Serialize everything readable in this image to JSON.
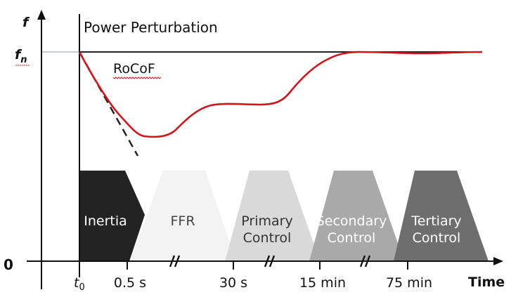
{
  "axes": {
    "y_label": "f",
    "fn_label_main": "f",
    "fn_label_sub": "n",
    "origin_label": "0",
    "x_label": "Time",
    "t0_main": "t",
    "t0_sub": "0"
  },
  "annotations": {
    "event_label": "Power Perturbation",
    "rocof_label": "RoCoF"
  },
  "time_ticks": [
    "0.5 s",
    "30 s",
    "15 min",
    "75 min"
  ],
  "stages": [
    {
      "line1": "Inertia",
      "line2": "",
      "color": "#232323",
      "text_color": "#ffffff"
    },
    {
      "line1": "FFR",
      "line2": "",
      "color": "#f3f3f3",
      "text_color": "#444444"
    },
    {
      "line1": "Primary",
      "line2": "Control",
      "color": "#d9d9d9",
      "text_color": "#333333"
    },
    {
      "line1": "Secondary",
      "line2": "Control",
      "color": "#a9a9a9",
      "text_color": "#ffffff"
    },
    {
      "line1": "Tertiary",
      "line2": "Control",
      "color": "#6e6e6e",
      "text_color": "#ffffff"
    }
  ],
  "colors": {
    "frequency_curve": "#d3151b",
    "nominal_line": "#222222",
    "rocof_tangent": "#222222",
    "axes": "#111111"
  }
}
